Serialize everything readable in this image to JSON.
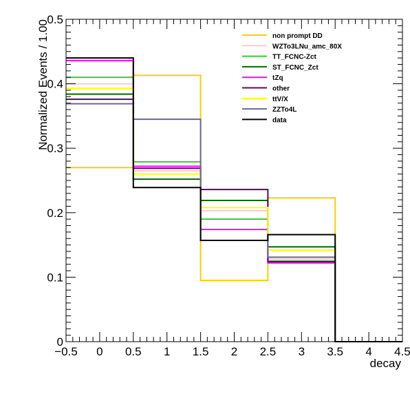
{
  "chart_data": {
    "type": "line",
    "style": "step-histogram",
    "xlabel": "decay",
    "ylabel": "Normalized Events / 1.00",
    "xlim": [
      -0.5,
      4.5
    ],
    "ylim": [
      0,
      0.5
    ],
    "xticks": [
      -0.5,
      0,
      0.5,
      1,
      1.5,
      2,
      2.5,
      3,
      3.5,
      4,
      4.5
    ],
    "xtick_labels": [
      "−0.5",
      "0",
      "0.5",
      "1",
      "1.5",
      "2",
      "2.5",
      "3",
      "3.5",
      "4",
      "4.5"
    ],
    "yticks": [
      0,
      0.1,
      0.2,
      0.3,
      0.4,
      0.5
    ],
    "ytick_labels": [
      "0",
      "0.1",
      "0.2",
      "0.3",
      "0.4",
      "0.5"
    ],
    "bin_edges": [
      -0.5,
      0.5,
      1.5,
      2.5,
      3.5,
      4.5
    ],
    "legend_position": "top-right",
    "grid": false,
    "series": [
      {
        "name": "non prompt DD",
        "color": "#ffcc00",
        "values": [
          0.27,
          0.413,
          0.095,
          0.223,
          0.0
        ]
      },
      {
        "name": "WZTo3LNu_amc_80X",
        "color": "#ffcccc",
        "values": [
          0.4,
          0.265,
          0.203,
          0.128,
          0.0
        ]
      },
      {
        "name": "TT_FCNC-Zct",
        "color": "#33cc33",
        "values": [
          0.41,
          0.279,
          0.19,
          0.125,
          0.0
        ]
      },
      {
        "name": "ST_FCNC_Zct",
        "color": "#006600",
        "values": [
          0.384,
          0.252,
          0.219,
          0.147,
          0.0
        ]
      },
      {
        "name": "tZq",
        "color": "#ff00ff",
        "values": [
          0.436,
          0.272,
          0.174,
          0.122,
          0.0
        ]
      },
      {
        "name": "other",
        "color": "#660066",
        "values": [
          0.376,
          0.269,
          0.236,
          0.124,
          0.0
        ]
      },
      {
        "name": "ttV/X",
        "color": "#ffff00",
        "values": [
          0.393,
          0.26,
          0.208,
          0.142,
          0.0
        ]
      },
      {
        "name": "ZZTo4L",
        "color": "#666699",
        "values": [
          0.369,
          0.345,
          0.157,
          0.131,
          0.0
        ]
      },
      {
        "name": "data",
        "color": "#000000",
        "values": [
          0.44,
          0.239,
          0.157,
          0.166,
          0.0
        ]
      }
    ]
  }
}
